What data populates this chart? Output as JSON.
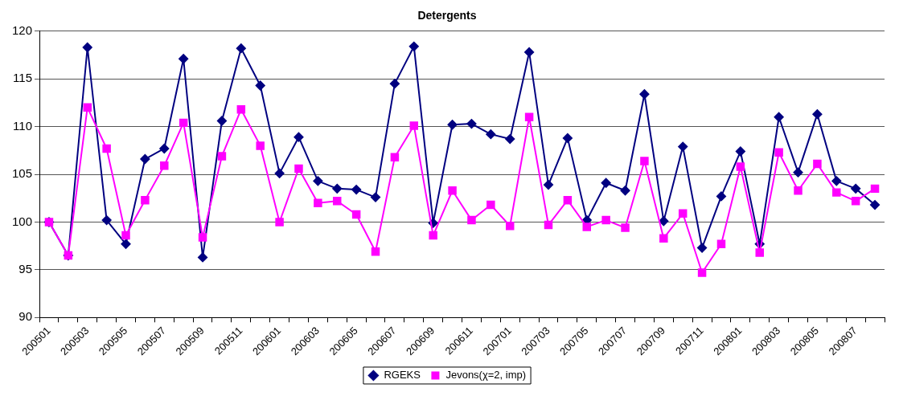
{
  "chart_data": {
    "type": "line",
    "title": "Detergents",
    "categories": [
      "200501",
      null,
      "200503",
      null,
      "200505",
      null,
      "200507",
      null,
      "200509",
      null,
      "200511",
      null,
      "200601",
      null,
      "200603",
      null,
      "200605",
      null,
      "200607",
      null,
      "200609",
      null,
      "200611",
      null,
      "200701",
      null,
      "200703",
      null,
      "200705",
      null,
      "200707",
      null,
      "200709",
      null,
      "200711",
      null,
      "200801",
      null,
      "200803",
      null,
      "200805",
      null,
      "200807",
      null
    ],
    "series": [
      {
        "name": "RGEKS",
        "color": "#000080",
        "marker": "diamond",
        "values": [
          100,
          96.5,
          118.3,
          100.2,
          97.7,
          106.6,
          107.7,
          117.1,
          96.3,
          110.6,
          118.2,
          114.3,
          105.1,
          108.9,
          104.3,
          103.5,
          103.4,
          102.6,
          114.5,
          118.4,
          99.9,
          110.2,
          110.3,
          109.2,
          108.7,
          117.8,
          103.9,
          108.8,
          100.2,
          104.1,
          103.3,
          113.4,
          100.1,
          107.9,
          97.3,
          102.7,
          107.4,
          97.7,
          111.0,
          105.2,
          111.3,
          104.3,
          103.5,
          101.8
        ]
      },
      {
        "name": "Jevons(χ=2, imp)",
        "color": "#ff00ff",
        "marker": "square",
        "values": [
          100,
          96.5,
          112.0,
          107.7,
          98.6,
          102.3,
          105.9,
          110.4,
          98.4,
          106.9,
          111.8,
          108.0,
          100.0,
          105.6,
          102.0,
          102.2,
          100.8,
          96.9,
          106.8,
          110.1,
          98.6,
          103.3,
          100.2,
          101.8,
          99.6,
          111.0,
          99.7,
          102.3,
          99.5,
          100.2,
          99.4,
          106.4,
          98.3,
          100.9,
          94.7,
          97.7,
          105.8,
          96.8,
          107.3,
          103.3,
          106.1,
          103.1,
          102.2,
          103.5
        ]
      }
    ],
    "ylim": [
      90,
      120
    ],
    "yticks": [
      90,
      95,
      100,
      105,
      110,
      115,
      120
    ],
    "grid": "y",
    "legend": "bottom",
    "line_style": "solid"
  }
}
